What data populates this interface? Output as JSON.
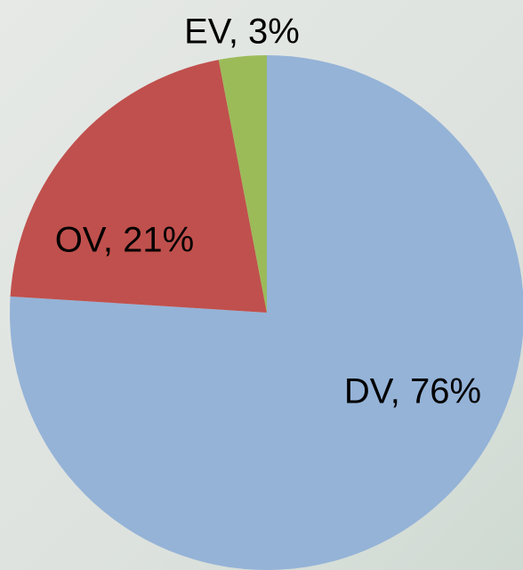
{
  "chart_data": {
    "type": "pie",
    "values": [
      76,
      21,
      3
    ],
    "value_labels": [
      "DV, 76%",
      "OV, 21%",
      "EV, 3%"
    ],
    "colors": [
      "#95b3d7",
      "#c0504d",
      "#9bbb59"
    ]
  }
}
